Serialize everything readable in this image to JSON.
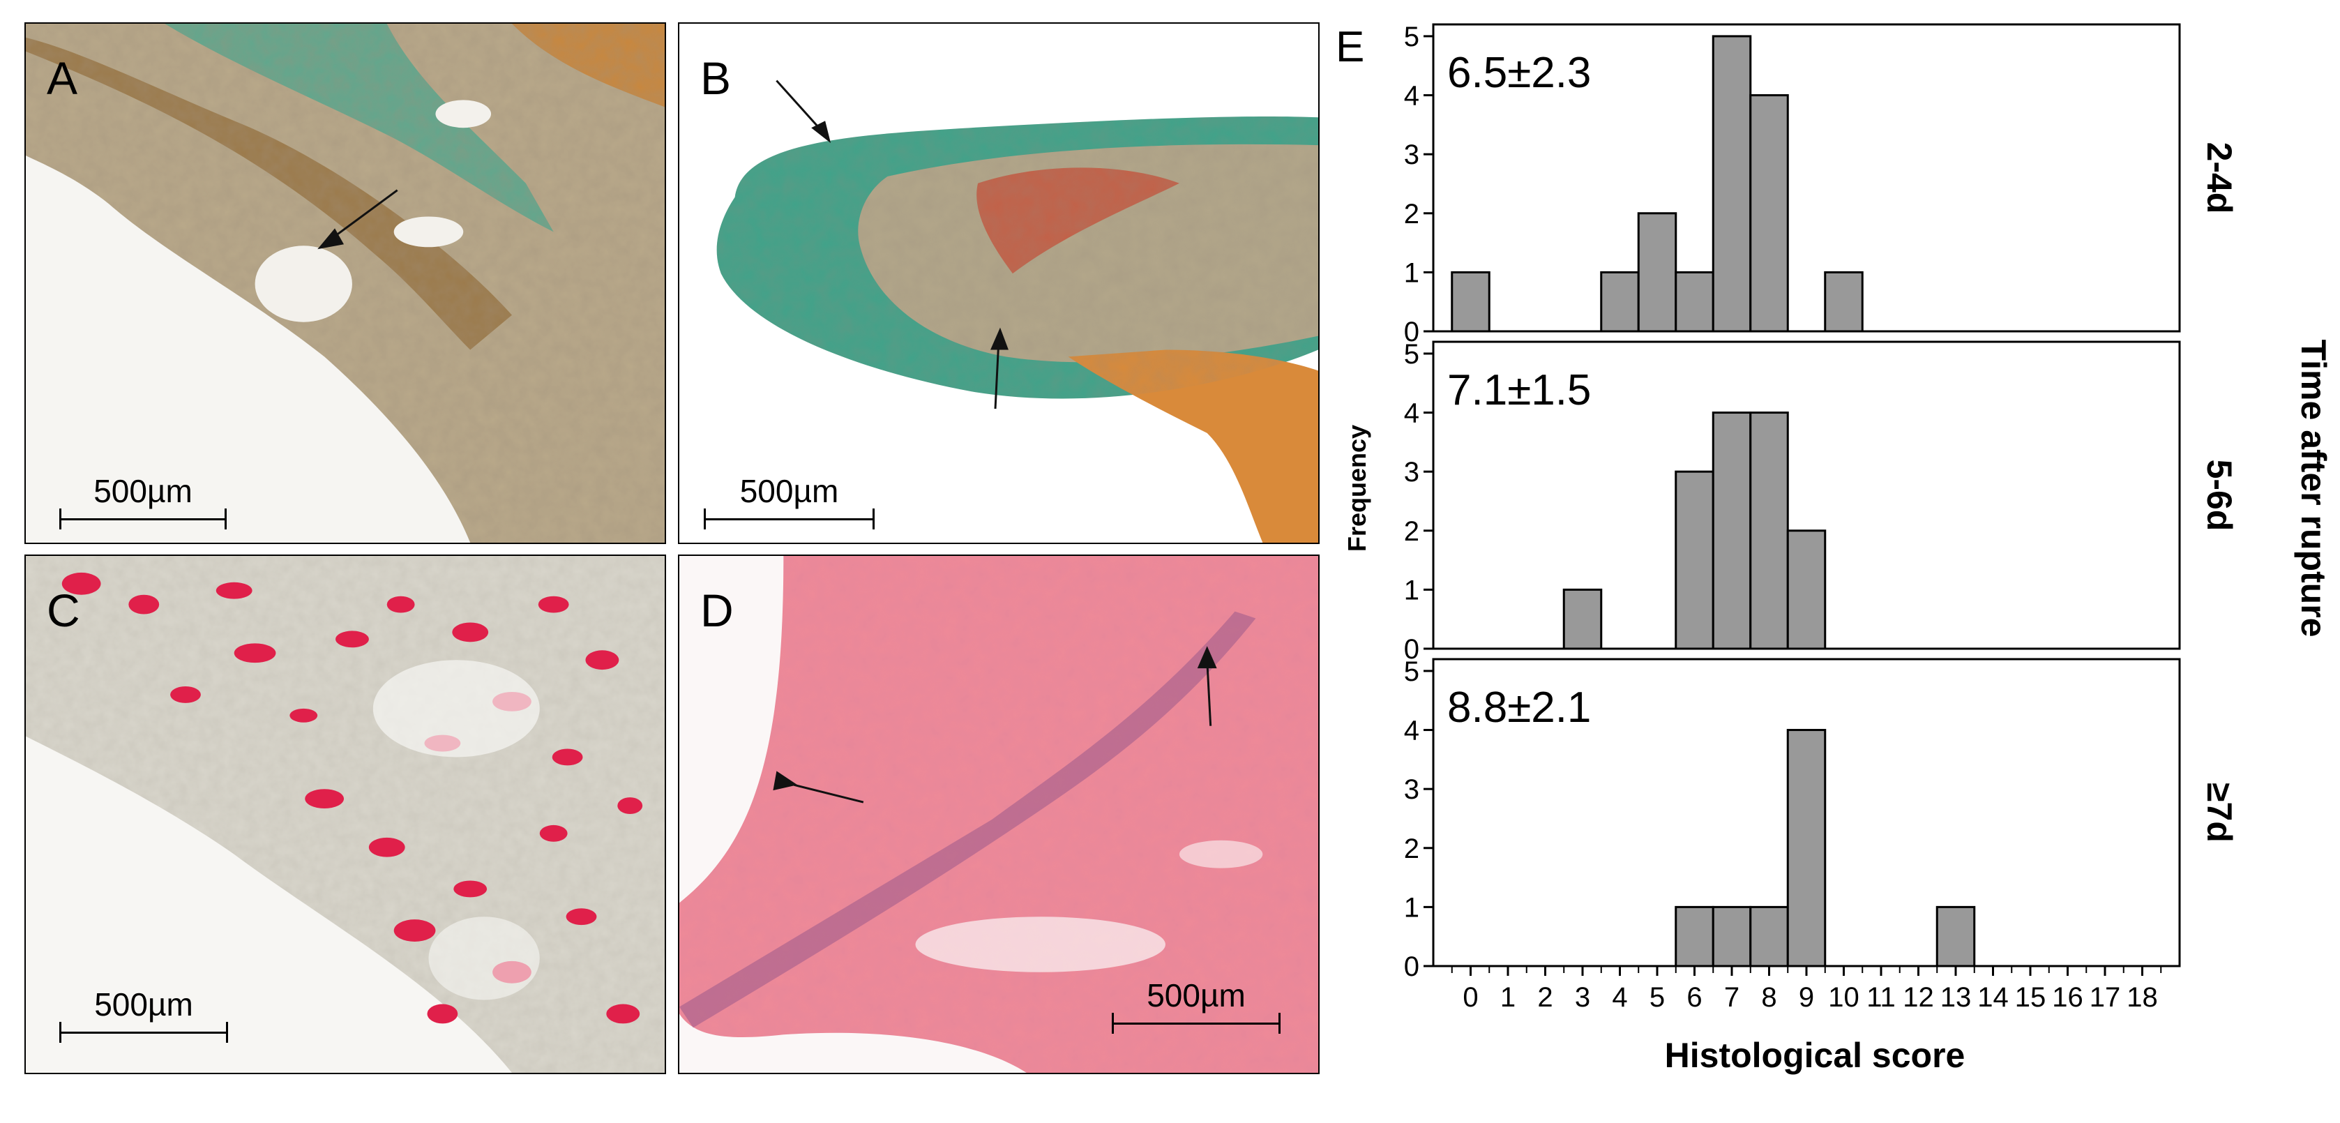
{
  "panels": {
    "A": {
      "label": "A",
      "scale": "500µm"
    },
    "B": {
      "label": "B",
      "scale": "500µm"
    },
    "C": {
      "label": "C",
      "scale": "500µm"
    },
    "D": {
      "label": "D",
      "scale": "500µm"
    },
    "E": {
      "label": "E"
    }
  },
  "chart_data": {
    "type": "bar",
    "xlabel": "Histological score",
    "ylabel": "Frequency",
    "facet_label": "Time after rupture",
    "x_ticks": [
      0,
      1,
      2,
      3,
      4,
      5,
      6,
      7,
      8,
      9,
      10,
      11,
      12,
      13,
      14,
      15,
      16,
      17,
      18
    ],
    "y_ticks": [
      0,
      1,
      2,
      3,
      4,
      5
    ],
    "ylim": [
      0,
      5.2
    ],
    "xlim": [
      -1,
      19
    ],
    "bar_color": "#999999",
    "facets": [
      {
        "row_label": "2-4d",
        "annotation": "6.5±2.3",
        "bars": [
          {
            "x": 0,
            "y": 1
          },
          {
            "x": 4,
            "y": 1
          },
          {
            "x": 5,
            "y": 2
          },
          {
            "x": 6,
            "y": 1
          },
          {
            "x": 7,
            "y": 5
          },
          {
            "x": 8,
            "y": 4
          },
          {
            "x": 10,
            "y": 1
          }
        ]
      },
      {
        "row_label": "5-6d",
        "annotation": "7.1±1.5",
        "bars": [
          {
            "x": 3,
            "y": 1
          },
          {
            "x": 6,
            "y": 3
          },
          {
            "x": 7,
            "y": 4
          },
          {
            "x": 8,
            "y": 4
          },
          {
            "x": 9,
            "y": 2
          }
        ]
      },
      {
        "row_label": "≥7d",
        "annotation": "8.8±2.1",
        "bars": [
          {
            "x": 6,
            "y": 1
          },
          {
            "x": 7,
            "y": 1
          },
          {
            "x": 8,
            "y": 1
          },
          {
            "x": 9,
            "y": 4
          },
          {
            "x": 13,
            "y": 1
          }
        ]
      }
    ]
  }
}
